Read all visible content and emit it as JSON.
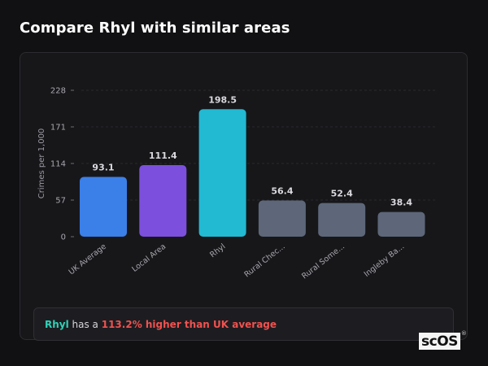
{
  "page": {
    "title": "Compare Rhyl with similar areas"
  },
  "chart_data": {
    "type": "bar",
    "ylabel": "Crimes per 1,000",
    "xlabel": "",
    "ylim": [
      0,
      228
    ],
    "yticks": [
      0,
      57,
      114,
      171,
      228
    ],
    "ytick_labels": [
      "0",
      "57",
      "114",
      "171",
      "228"
    ],
    "grid": true,
    "categories": [
      "UK Average",
      "Local Area",
      "Rhyl",
      "Rural Chec...",
      "Rural Some...",
      "Ingleby Ba..."
    ],
    "values": [
      93.1,
      111.4,
      198.5,
      56.4,
      52.4,
      38.4
    ],
    "value_labels": [
      "93.1",
      "111.4",
      "198.5",
      "56.4",
      "52.4",
      "38.4"
    ],
    "bar_colors": [
      "#3b7fe8",
      "#7c4fdc",
      "#22b9d3",
      "#5d6779",
      "#5d6779",
      "#5d6779"
    ]
  },
  "summary": {
    "area": "Rhyl",
    "connector": " has a ",
    "difference": "113.2% higher than UK average"
  },
  "brand": {
    "logo_text": "scOS",
    "registered": "®"
  },
  "colors": {
    "background": "#111113",
    "panel": "#17171a",
    "area_highlight": "#2fd1b8",
    "difference_highlight": "#f0524f"
  }
}
